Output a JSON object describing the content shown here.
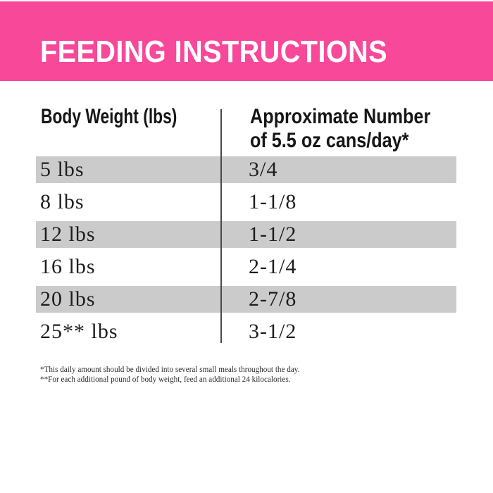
{
  "banner": {
    "title": "FEEDING INSTRUCTIONS",
    "background_color": "#f8489a",
    "text_color": "#ffffff"
  },
  "table": {
    "header": {
      "col1": "Body Weight (lbs)",
      "col2_line1": "Approximate Number",
      "col2_line2": "of 5.5 oz cans/day*"
    },
    "shaded_row_color": "#cbcbcb",
    "rows": [
      {
        "weight": "5 lbs",
        "cans": "3/4",
        "shaded": true
      },
      {
        "weight": "8 lbs",
        "cans": "1-1/8",
        "shaded": false
      },
      {
        "weight": "12 lbs",
        "cans": "1-1/2",
        "shaded": true
      },
      {
        "weight": "16 lbs",
        "cans": "2-1/4",
        "shaded": false
      },
      {
        "weight": "20 lbs",
        "cans": "2-7/8",
        "shaded": true
      },
      {
        "weight": "25** lbs",
        "cans": "3-1/2",
        "shaded": false
      }
    ]
  },
  "footnotes": [
    "*This daily amount should be divided into several small meals throughout the day.",
    "**For each additional pound of body weight, feed an additional 24 kilocalories."
  ]
}
